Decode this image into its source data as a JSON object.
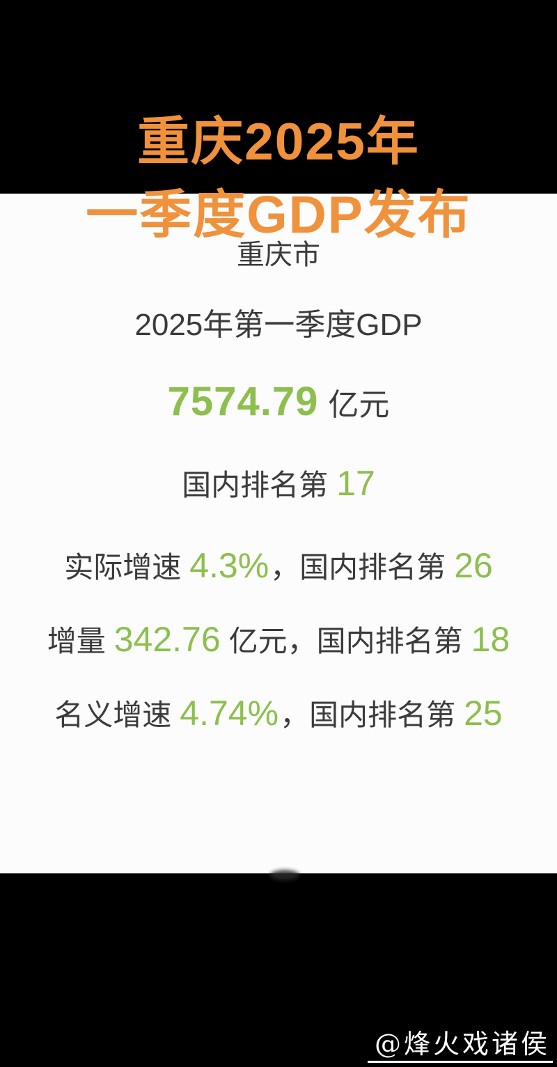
{
  "header": {
    "title_line1": "重庆2025年",
    "title_line2": "一季度GDP发布"
  },
  "content": {
    "region": "重庆市",
    "subtitle": "2025年第一季度GDP",
    "gdp": {
      "value": "7574.79",
      "unit": "亿元"
    },
    "national_rank": {
      "label": "国内排名第",
      "value": "17"
    },
    "real_growth": {
      "label": "实际增速",
      "value": "4.3%",
      "mid": "，国内排名第",
      "rank": "26"
    },
    "increment": {
      "label": "增量",
      "value": "342.76",
      "unit": "亿元",
      "mid": "，国内排名第",
      "rank": "18"
    },
    "nominal_growth": {
      "label": "名义增速",
      "value": "4.74%",
      "mid": "，国内排名第",
      "rank": "25"
    }
  },
  "footer": {
    "watermark": "@烽火戏诸侯"
  },
  "colors": {
    "accent_orange": "#F0913C",
    "accent_green": "#8CBF4C",
    "text_dark": "#3B3B3B",
    "panel_bg": "#FCFCFC",
    "band_bg": "#000000"
  }
}
